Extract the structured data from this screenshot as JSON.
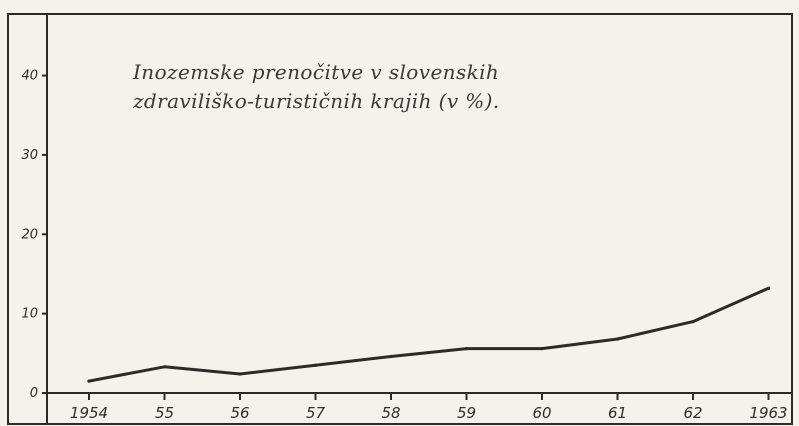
{
  "chart_data": {
    "type": "line",
    "title_lines": [
      "Inozemske prenočitve v slovenskih",
      "zdraviliško-turističnih krajih (v %)."
    ],
    "categories": [
      "1954",
      "55",
      "56",
      "57",
      "58",
      "59",
      "60",
      "61",
      "62",
      "1963"
    ],
    "values": [
      1.5,
      3.3,
      2.4,
      3.5,
      4.6,
      5.6,
      5.6,
      6.8,
      9.0,
      13.2
    ],
    "ylim": [
      0,
      47
    ],
    "yticks": [
      "0",
      "10",
      "20",
      "30",
      "40"
    ],
    "xlabel": "",
    "ylabel": "",
    "grid": false,
    "line_color": "#2b2b2b"
  }
}
